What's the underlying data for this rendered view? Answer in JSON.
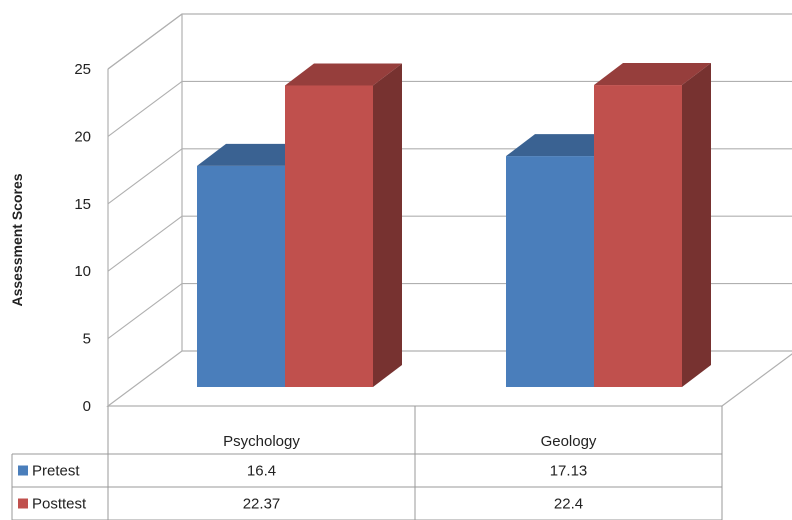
{
  "chart_data": {
    "type": "bar",
    "three_d": true,
    "categories": [
      "Psychology",
      "Geology"
    ],
    "series": [
      {
        "name": "Pretest",
        "values": [
          16.4,
          17.13
        ],
        "color": "#4a7ebb"
      },
      {
        "name": "Posttest",
        "values": [
          22.37,
          22.4
        ],
        "color": "#c0504d"
      }
    ],
    "ylabel": "Assessment Scores",
    "xlabel": "",
    "ylim": [
      0,
      25
    ],
    "yticks": [
      0,
      5,
      10,
      15,
      20,
      25
    ],
    "grid": true,
    "legend": "data-table",
    "data_table": {
      "rows": [
        {
          "label": "Pretest",
          "cells": [
            "16.4",
            "17.13"
          ]
        },
        {
          "label": "Posttest",
          "cells": [
            "22.37",
            "22.4"
          ]
        }
      ]
    }
  }
}
